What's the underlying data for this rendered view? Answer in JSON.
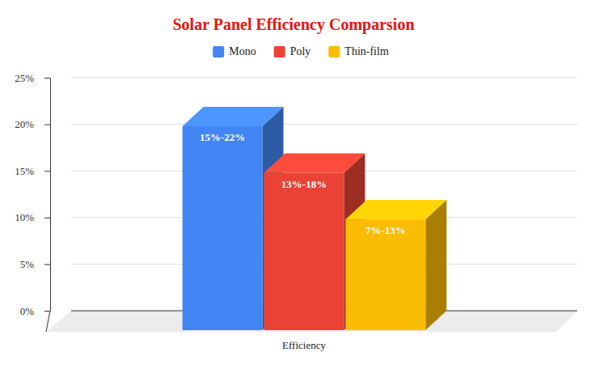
{
  "chart_data": {
    "type": "bar",
    "title": "Solar Panel Efficiency Comparsion",
    "categories": [
      "Efficiency"
    ],
    "series": [
      {
        "name": "Mono",
        "color": "#4285f4",
        "values": [
          19.8
        ]
      },
      {
        "name": "Poly",
        "color": "#ea4335",
        "values": [
          14.8
        ]
      },
      {
        "name": "Thin-film",
        "color": "#fbbc04",
        "values": [
          9.8
        ]
      }
    ],
    "ylim": [
      0,
      25
    ],
    "yticks": [
      {
        "value": 0,
        "label": "0%"
      },
      {
        "value": 5,
        "label": "5%"
      },
      {
        "value": 10,
        "label": "10%"
      },
      {
        "value": 15,
        "label": "15%"
      },
      {
        "value": 20,
        "label": "20%"
      },
      {
        "value": 25,
        "label": "25%"
      }
    ],
    "grid": true,
    "legend": "top",
    "annotations": [
      "15%-22%",
      "13%-18%",
      "7%-13%"
    ]
  }
}
